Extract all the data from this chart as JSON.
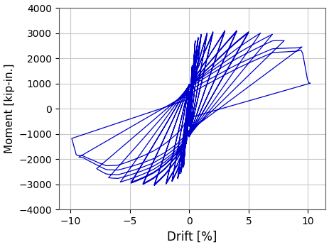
{
  "xlabel": "Drift [%]",
  "ylabel": "Moment [kip-in.]",
  "xlim": [
    -11,
    11.5
  ],
  "ylim": [
    -4000,
    4000
  ],
  "xticks": [
    -10,
    -5,
    0,
    5,
    10
  ],
  "yticks": [
    -4000,
    -3000,
    -2000,
    -1000,
    0,
    1000,
    2000,
    3000,
    4000
  ],
  "line_color": "#0000CC",
  "line_width": 0.9,
  "background_color": "#ffffff",
  "grid_color": "#c8c8c8",
  "figsize": [
    4.64,
    3.48
  ],
  "dpi": 100,
  "xlabel_fontsize": 12,
  "ylabel_fontsize": 11,
  "tick_fontsize": 10
}
